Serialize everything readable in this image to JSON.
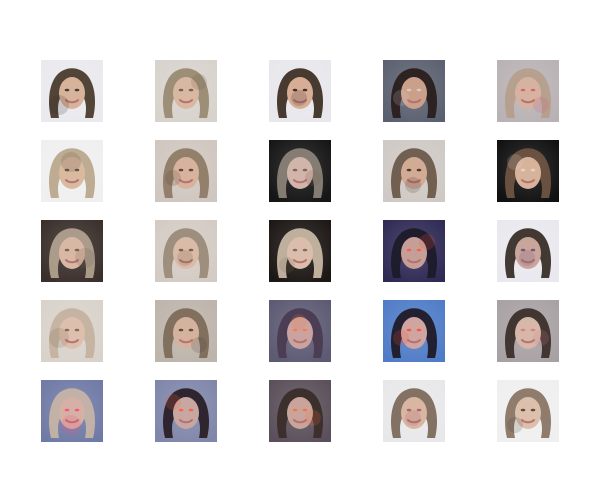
{
  "grid": {
    "rows": 5,
    "cols": 5,
    "tiles": [
      {
        "bg": "#e9e9ee",
        "hair": "#4a3b2c",
        "skin": "#d8b39c",
        "accent": "#3a2f28"
      },
      {
        "bg": "#d7d2cc",
        "hair": "#9a8a72",
        "skin": "#d9b8a2",
        "accent": "#6b5644"
      },
      {
        "bg": "#e7e7ec",
        "hair": "#3f3025",
        "skin": "#d7ae95",
        "accent": "#2d241f"
      },
      {
        "bg": "#5b6070",
        "hair": "#2a1f1d",
        "skin": "#caa08a",
        "accent": "#d7cfc7"
      },
      {
        "bg": "#b9b2b5",
        "hair": "#b59e8b",
        "skin": "#d6b3a0",
        "accent": "#d45a74"
      },
      {
        "bg": "#efefef",
        "hair": "#b9a88b",
        "skin": "#d9baa1",
        "accent": "#5c4a3b"
      },
      {
        "bg": "#cfc6bf",
        "hair": "#8f7b66",
        "skin": "#d7b29c",
        "accent": "#4d3c31"
      },
      {
        "bg": "#151515",
        "hair": "#8a8277",
        "skin": "#d1b5ab",
        "accent": "#7a5a46"
      },
      {
        "bg": "#cfc9c5",
        "hair": "#6c5a4a",
        "skin": "#d2ab95",
        "accent": "#3b2f28"
      },
      {
        "bg": "#101010",
        "hair": "#6f5441",
        "skin": "#d7b39c",
        "accent": "#e1d6cc"
      },
      {
        "bg": "#3a2f2a",
        "hair": "#b0a08e",
        "skin": "#d8b8a5",
        "accent": "#6f5a4a"
      },
      {
        "bg": "#d3cbc3",
        "hair": "#9a8a79",
        "skin": "#d9bba7",
        "accent": "#6a5646"
      },
      {
        "bg": "#1c1714",
        "hair": "#c7b7a4",
        "skin": "#dbbdab",
        "accent": "#7a6351"
      },
      {
        "bg": "#2f2a55",
        "hair": "#1e1a2b",
        "skin": "#c59e98",
        "accent": "#ff5a3d"
      },
      {
        "bg": "#e8e8ee",
        "hair": "#3a2f28",
        "skin": "#c9a59b",
        "accent": "#6a4f7a"
      },
      {
        "bg": "#d9d2cb",
        "hair": "#c3b29e",
        "skin": "#dcc0ad",
        "accent": "#7a6552"
      },
      {
        "bg": "#bdb4ab",
        "hair": "#7d6b59",
        "skin": "#d4b29e",
        "accent": "#4f3f34"
      },
      {
        "bg": "#5c5a73",
        "hair": "#4a3b52",
        "skin": "#caa3a0",
        "accent": "#ff7a3a"
      },
      {
        "bg": "#4f7cc7",
        "hair": "#1f1a28",
        "skin": "#cfa4a1",
        "accent": "#ff4e2e"
      },
      {
        "bg": "#a8a1a4",
        "hair": "#3b2f2a",
        "skin": "#d7b7a8",
        "accent": "#d77a8b"
      },
      {
        "bg": "#6f7aa6",
        "hair": "#c6b3a6",
        "skin": "#d5b0a5",
        "accent": "#ff4b7b"
      },
      {
        "bg": "#7f86a9",
        "hair": "#2a2028",
        "skin": "#c8a7a3",
        "accent": "#ff5d3a"
      },
      {
        "bg": "#5a4f5a",
        "hair": "#3a2d2a",
        "skin": "#c8a49a",
        "accent": "#ff6d3a"
      },
      {
        "bg": "#e8e8ea",
        "hair": "#7d6b5c",
        "skin": "#d8b6a2",
        "accent": "#a65b6c"
      },
      {
        "bg": "#efefef",
        "hair": "#8a7565",
        "skin": "#dcc0ac",
        "accent": "#4e3e33"
      }
    ]
  }
}
